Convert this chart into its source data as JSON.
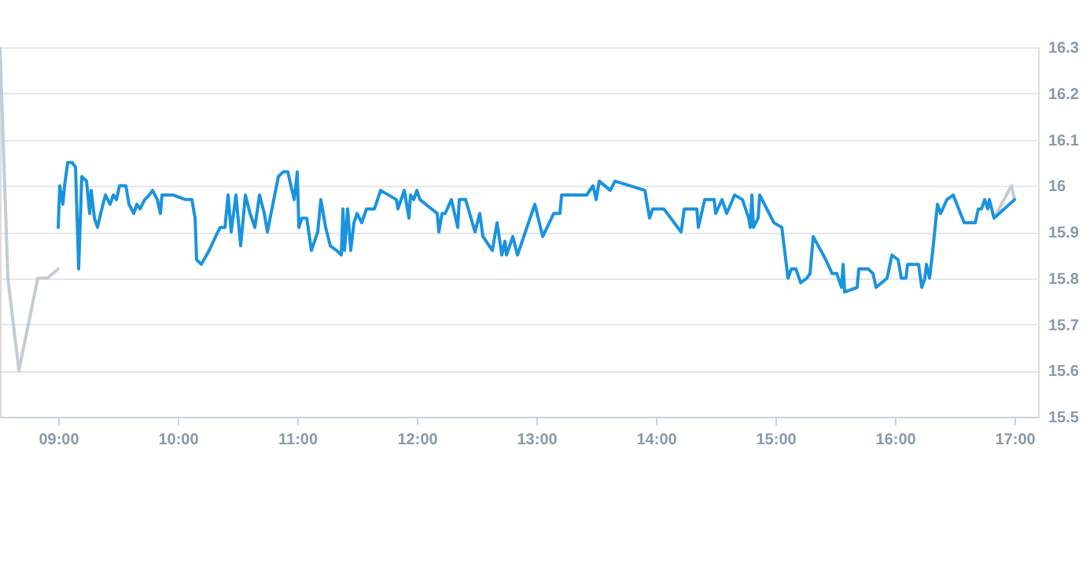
{
  "chart_data": {
    "type": "line",
    "grid": "y",
    "marker": "none",
    "line_style": "solid",
    "xlim": [
      8.513,
      17.197
    ],
    "ylim": [
      15.5,
      16.3
    ],
    "xticks": [
      {
        "value": 9,
        "label": "09:00"
      },
      {
        "value": 10,
        "label": "10:00"
      },
      {
        "value": 11,
        "label": "11:00"
      },
      {
        "value": 12,
        "label": "12:00"
      },
      {
        "value": 13,
        "label": "13:00"
      },
      {
        "value": 14,
        "label": "14:00"
      },
      {
        "value": 15,
        "label": "15:00"
      },
      {
        "value": 16,
        "label": "16:00"
      },
      {
        "value": 17,
        "label": "17:00"
      }
    ],
    "yticks": [
      15.5,
      15.6,
      15.7,
      15.8,
      15.9,
      16,
      16.1,
      16.2,
      16.3
    ],
    "series": [
      {
        "color": "#c3ccd4",
        "x": [
          8.513,
          8.579,
          8.671,
          8.829,
          8.908,
          9.0
        ],
        "values": [
          16.3,
          15.8,
          15.6,
          15.8,
          15.8,
          15.82
        ]
      },
      {
        "color": "#c3ccd4",
        "x": [
          16.829,
          16.974,
          17.0
        ],
        "values": [
          15.93,
          16.0,
          15.97
        ]
      },
      {
        "color": "#1a93de",
        "x": [
          9.0,
          9.013,
          9.039,
          9.053,
          9.079,
          9.118,
          9.145,
          9.171,
          9.197,
          9.237,
          9.263,
          9.276,
          9.303,
          9.329,
          9.355,
          9.395,
          9.434,
          9.461,
          9.487,
          9.513,
          9.566,
          9.592,
          9.632,
          9.658,
          9.684,
          9.724,
          9.763,
          9.789,
          9.829,
          9.855,
          9.868,
          9.961,
          10.066,
          10.118,
          10.145,
          10.158,
          10.197,
          10.263,
          10.316,
          10.355,
          10.395,
          10.421,
          10.447,
          10.487,
          10.526,
          10.566,
          10.605,
          10.645,
          10.684,
          10.724,
          10.75,
          10.803,
          10.842,
          10.882,
          10.921,
          10.947,
          10.974,
          11.0,
          11.013,
          11.039,
          11.079,
          11.118,
          11.171,
          11.197,
          11.237,
          11.276,
          11.329,
          11.368,
          11.382,
          11.395,
          11.421,
          11.447,
          11.474,
          11.5,
          11.539,
          11.579,
          11.645,
          11.697,
          11.829,
          11.842,
          11.895,
          11.934,
          11.947,
          11.974,
          12.0,
          12.026,
          12.171,
          12.184,
          12.211,
          12.237,
          12.289,
          12.342,
          12.355,
          12.408,
          12.487,
          12.526,
          12.553,
          12.632,
          12.671,
          12.711,
          12.737,
          12.75,
          12.803,
          12.842,
          12.987,
          13.053,
          13.145,
          13.197,
          13.211,
          13.421,
          13.474,
          13.5,
          13.526,
          13.618,
          13.658,
          13.908,
          13.947,
          13.974,
          14.066,
          14.211,
          14.237,
          14.342,
          14.355,
          14.408,
          14.487,
          14.5,
          14.553,
          14.592,
          14.658,
          14.724,
          14.776,
          14.789,
          14.803,
          14.816,
          14.855,
          14.868,
          14.908,
          14.987,
          15.053,
          15.105,
          15.132,
          15.171,
          15.211,
          15.263,
          15.289,
          15.316,
          15.421,
          15.474,
          15.513,
          15.553,
          15.566,
          15.579,
          15.684,
          15.697,
          15.776,
          15.816,
          15.842,
          15.934,
          15.974,
          16.026,
          16.053,
          16.092,
          16.105,
          16.197,
          16.224,
          16.25,
          16.263,
          16.289,
          16.316,
          16.355,
          16.382,
          16.434,
          16.487,
          16.579,
          16.671,
          16.697,
          16.724,
          16.75,
          16.776,
          16.789,
          16.829,
          17.0
        ],
        "values": [
          15.91,
          16.0,
          15.96,
          16.0,
          16.05,
          16.05,
          16.04,
          15.82,
          16.02,
          16.01,
          15.94,
          15.99,
          15.93,
          15.91,
          15.94,
          15.98,
          15.96,
          15.98,
          15.97,
          16.0,
          16.0,
          15.96,
          15.94,
          15.96,
          15.95,
          15.97,
          15.98,
          15.99,
          15.97,
          15.94,
          15.98,
          15.98,
          15.97,
          15.97,
          15.93,
          15.84,
          15.83,
          15.86,
          15.89,
          15.91,
          15.91,
          15.98,
          15.9,
          15.98,
          15.87,
          15.98,
          15.94,
          15.91,
          15.98,
          15.94,
          15.9,
          15.97,
          16.02,
          16.03,
          16.03,
          16.0,
          15.97,
          16.03,
          15.91,
          15.93,
          15.93,
          15.86,
          15.9,
          15.97,
          15.91,
          15.87,
          15.86,
          15.85,
          15.95,
          15.86,
          15.95,
          15.86,
          15.92,
          15.94,
          15.92,
          15.95,
          15.95,
          15.99,
          15.97,
          15.95,
          15.99,
          15.93,
          15.98,
          15.97,
          15.99,
          15.97,
          15.94,
          15.9,
          15.94,
          15.94,
          15.97,
          15.91,
          15.97,
          15.97,
          15.9,
          15.94,
          15.89,
          15.86,
          15.92,
          15.85,
          15.88,
          15.85,
          15.89,
          15.85,
          15.96,
          15.89,
          15.94,
          15.94,
          15.98,
          15.98,
          16.0,
          15.97,
          16.01,
          15.99,
          16.01,
          15.99,
          15.93,
          15.95,
          15.95,
          15.9,
          15.95,
          15.95,
          15.91,
          15.97,
          15.97,
          15.94,
          15.97,
          15.94,
          15.98,
          15.97,
          15.93,
          15.91,
          15.98,
          15.91,
          15.93,
          15.98,
          15.96,
          15.92,
          15.91,
          15.8,
          15.82,
          15.82,
          15.79,
          15.8,
          15.81,
          15.89,
          15.84,
          15.81,
          15.81,
          15.78,
          15.83,
          15.77,
          15.78,
          15.82,
          15.82,
          15.81,
          15.78,
          15.8,
          15.85,
          15.84,
          15.8,
          15.8,
          15.83,
          15.83,
          15.78,
          15.8,
          15.83,
          15.8,
          15.86,
          15.96,
          15.94,
          15.97,
          15.98,
          15.92,
          15.92,
          15.95,
          15.95,
          15.97,
          15.95,
          15.97,
          15.93,
          15.97
        ]
      }
    ]
  }
}
